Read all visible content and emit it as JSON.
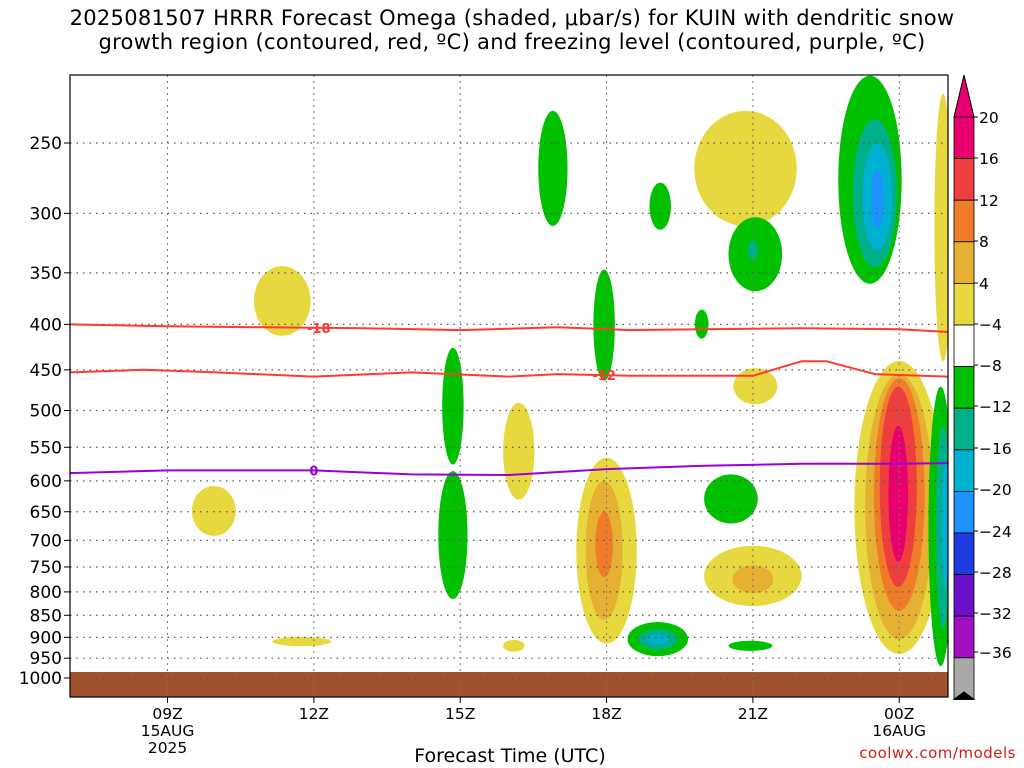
{
  "title": {
    "line1": "2025081507 HRRR Forecast Omega (shaded, μbar/s) for KUIN with dendritic snow",
    "line2": "growth region (contoured, red, ºC) and freezing level (contoured, purple, ºC)"
  },
  "xlabel": "Forecast Time (UTC)",
  "credit": "coolwx.com/models",
  "chart_data": {
    "type": "heatmap",
    "title": "2025081507 HRRR Forecast Omega (shaded, μbar/s) for KUIN with dendritic snow growth region (contoured, red, ºC) and freezing level (contoured, purple, ºC)",
    "xlabel": "Forecast Time (UTC)",
    "ylabel": "",
    "x_range_hours": [
      7,
      25
    ],
    "y_range_mb": [
      1000,
      200
    ],
    "y_scale": "log-pressure",
    "grid": true,
    "x_ticks": [
      {
        "hour": 9,
        "lines": [
          "09Z",
          "15AUG",
          "2025"
        ]
      },
      {
        "hour": 12,
        "lines": [
          "12Z"
        ]
      },
      {
        "hour": 15,
        "lines": [
          "15Z"
        ]
      },
      {
        "hour": 18,
        "lines": [
          "18Z"
        ]
      },
      {
        "hour": 21,
        "lines": [
          "21Z"
        ]
      },
      {
        "hour": 24,
        "lines": [
          "00Z",
          "16AUG"
        ]
      }
    ],
    "y_ticks": [
      250,
      300,
      350,
      400,
      450,
      500,
      550,
      600,
      650,
      700,
      750,
      800,
      850,
      900,
      950,
      1000
    ],
    "colorbar": {
      "labels": [
        "20",
        "16",
        "12",
        "8",
        "4",
        "−4",
        "−8",
        "−12",
        "−16",
        "−20",
        "−24",
        "−28",
        "−32",
        "−36"
      ],
      "colors": [
        "#e8006e",
        "#ef3e3e",
        "#f07c2a",
        "#e6b032",
        "#e8d840",
        "#ffffff",
        "#00c000",
        "#00b088",
        "#00b0d0",
        "#1e90ff",
        "#1c3ce0",
        "#6a10c8",
        "#a010c0",
        "#a8a8a8"
      ],
      "top_arrow": "#e8006e",
      "bottom_arrow": "#000000"
    },
    "omega_regions": [
      {
        "value": 4,
        "hour": 11.35,
        "mb": 378,
        "dh": 0.58,
        "dmb": 34
      },
      {
        "value": 4,
        "hour": 9.95,
        "mb": 650,
        "dh": 0.45,
        "dmb": 42
      },
      {
        "value": 4,
        "hour": 11.75,
        "mb": 910,
        "dh": 0.6,
        "dmb": 11
      },
      {
        "value": 4,
        "hour": 16.1,
        "mb": 920,
        "dh": 0.22,
        "dmb": 14
      },
      {
        "value": 4,
        "hour": 16.2,
        "mb": 560,
        "dh": 0.32,
        "dmb": 70
      },
      {
        "value": 4,
        "hour": 20.85,
        "mb": 270,
        "dh": 1.05,
        "dmb": 40
      },
      {
        "value": 4,
        "hour": 21.05,
        "mb": 470,
        "dh": 0.45,
        "dmb": 22
      },
      {
        "value": 4,
        "hour": 18.0,
        "mb": 740,
        "dh": 0.62,
        "dmb": 175
      },
      {
        "value": 8,
        "hour": 17.95,
        "mb": 730,
        "dh": 0.38,
        "dmb": 130
      },
      {
        "value": 12,
        "hour": 17.95,
        "mb": 710,
        "dh": 0.18,
        "dmb": 60
      },
      {
        "value": 4,
        "hour": 21.0,
        "mb": 770,
        "dh": 1.0,
        "dmb": 60
      },
      {
        "value": 8,
        "hour": 21.0,
        "mb": 775,
        "dh": 0.42,
        "dmb": 28
      },
      {
        "value": 4,
        "hour": 24.0,
        "mb": 690,
        "dh": 0.92,
        "dmb": 250
      },
      {
        "value": 8,
        "hour": 24.0,
        "mb": 680,
        "dh": 0.7,
        "dmb": 225
      },
      {
        "value": 12,
        "hour": 24.0,
        "mb": 650,
        "dh": 0.52,
        "dmb": 190
      },
      {
        "value": 16,
        "hour": 23.98,
        "mb": 630,
        "dh": 0.38,
        "dmb": 160
      },
      {
        "value": 20,
        "hour": 23.98,
        "mb": 630,
        "dh": 0.2,
        "dmb": 110
      },
      {
        "value": 4,
        "hour": 24.9,
        "mb": 330,
        "dh": 0.18,
        "dmb": 110
      },
      {
        "value": -4,
        "hour": 16.9,
        "mb": 270,
        "dh": 0.3,
        "dmb": 40
      },
      {
        "value": -4,
        "hour": 17.95,
        "mb": 405,
        "dh": 0.22,
        "dmb": 58
      },
      {
        "value": -4,
        "hour": 19.1,
        "mb": 295,
        "dh": 0.22,
        "dmb": 18
      },
      {
        "value": -4,
        "hour": 19.95,
        "mb": 400,
        "dh": 0.14,
        "dmb": 15
      },
      {
        "value": -4,
        "hour": 20.55,
        "mb": 630,
        "dh": 0.55,
        "dmb": 40
      },
      {
        "value": -4,
        "hour": 21.05,
        "mb": 335,
        "dh": 0.55,
        "dmb": 32
      },
      {
        "value": -8,
        "hour": 21.0,
        "mb": 330,
        "dh": 0.1,
        "dmb": 8
      },
      {
        "value": -4,
        "hour": 20.95,
        "mb": 920,
        "dh": 0.45,
        "dmb": 12
      },
      {
        "value": -4,
        "hour": 19.05,
        "mb": 905,
        "dh": 0.62,
        "dmb": 40
      },
      {
        "value": -8,
        "hour": 19.05,
        "mb": 905,
        "dh": 0.4,
        "dmb": 24
      },
      {
        "value": -12,
        "hour": 19.05,
        "mb": 905,
        "dh": 0.22,
        "dmb": 12
      },
      {
        "value": -4,
        "hour": 14.85,
        "mb": 500,
        "dh": 0.22,
        "dmb": 75
      },
      {
        "value": -4,
        "hour": 14.85,
        "mb": 700,
        "dh": 0.3,
        "dmb": 115
      },
      {
        "value": -4,
        "hour": 23.4,
        "mb": 285,
        "dh": 0.65,
        "dmb": 75
      },
      {
        "value": -8,
        "hour": 23.5,
        "mb": 290,
        "dh": 0.45,
        "dmb": 55
      },
      {
        "value": -12,
        "hour": 23.55,
        "mb": 290,
        "dh": 0.3,
        "dmb": 40
      },
      {
        "value": -16,
        "hour": 23.55,
        "mb": 290,
        "dh": 0.12,
        "dmb": 22
      },
      {
        "value": -4,
        "hour": 24.85,
        "mb": 720,
        "dh": 0.25,
        "dmb": 250
      },
      {
        "value": -8,
        "hour": 24.9,
        "mb": 700,
        "dh": 0.15,
        "dmb": 180
      },
      {
        "value": -12,
        "hour": 24.95,
        "mb": 680,
        "dh": 0.08,
        "dmb": 110
      }
    ],
    "contours": [
      {
        "label": "-18",
        "color": "#ff3b30",
        "label_hour": 12.1,
        "points": [
          [
            7,
            400
          ],
          [
            9,
            402
          ],
          [
            11,
            403
          ],
          [
            13,
            404
          ],
          [
            15,
            406
          ],
          [
            17,
            403
          ],
          [
            18.5,
            406
          ],
          [
            20,
            405
          ],
          [
            22,
            404
          ],
          [
            24,
            405
          ],
          [
            25,
            408
          ]
        ]
      },
      {
        "label": "-12",
        "color": "#ff3b30",
        "label_hour": 17.95,
        "points": [
          [
            7,
            453
          ],
          [
            8.5,
            450
          ],
          [
            10,
            453
          ],
          [
            12,
            458
          ],
          [
            14,
            453
          ],
          [
            16,
            458
          ],
          [
            17,
            455
          ],
          [
            18.5,
            457
          ],
          [
            20,
            457
          ],
          [
            21,
            457
          ],
          [
            22,
            440
          ],
          [
            22.5,
            440
          ],
          [
            23.5,
            455
          ],
          [
            25,
            458
          ]
        ]
      },
      {
        "label": "0",
        "color": "#9a00d8",
        "label_hour": 12.0,
        "points": [
          [
            7,
            588
          ],
          [
            9,
            584
          ],
          [
            12,
            584
          ],
          [
            14,
            590
          ],
          [
            16,
            591
          ],
          [
            18,
            582
          ],
          [
            20,
            577
          ],
          [
            22,
            574
          ],
          [
            24,
            574
          ],
          [
            25,
            573
          ]
        ]
      }
    ]
  }
}
